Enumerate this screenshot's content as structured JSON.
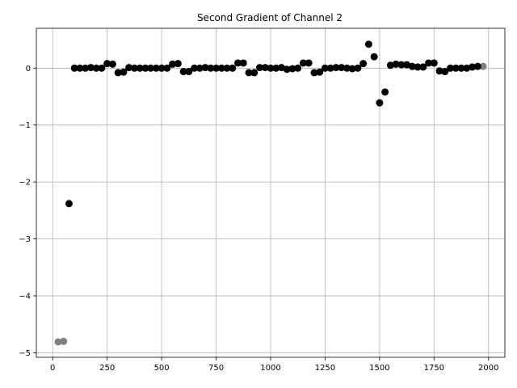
{
  "chart_data": {
    "type": "scatter",
    "title": "Second Gradient of Channel 2",
    "xlabel": "",
    "ylabel": "",
    "xlim": [
      -75,
      2075
    ],
    "ylim": [
      -5.08,
      0.7
    ],
    "grid": true,
    "x_ticks": [
      0,
      250,
      500,
      750,
      1000,
      1250,
      1500,
      1750,
      2000
    ],
    "y_ticks": [
      0,
      -1,
      -2,
      -3,
      -4,
      -5
    ],
    "x_tick_labels": [
      "0",
      "250",
      "500",
      "750",
      "1000",
      "1250",
      "1500",
      "1750",
      "2000"
    ],
    "y_tick_labels": [
      "0",
      "−1",
      "−2",
      "−3",
      "−4",
      "−5"
    ],
    "colors": {
      "primary": "#000000",
      "edge": "#808080",
      "grid": "#b0b0b0"
    },
    "series": [
      {
        "color": "#808080",
        "points": [
          [
            25,
            -4.81
          ],
          [
            50,
            -4.8
          ],
          [
            1975,
            0.03
          ]
        ]
      },
      {
        "color": "#000000",
        "points": [
          [
            75,
            -2.38
          ],
          [
            100,
            0.0
          ],
          [
            125,
            0.0
          ],
          [
            150,
            0.0
          ],
          [
            175,
            0.01
          ],
          [
            200,
            0.0
          ],
          [
            225,
            0.0
          ],
          [
            250,
            0.08
          ],
          [
            275,
            0.07
          ],
          [
            300,
            -0.08
          ],
          [
            325,
            -0.07
          ],
          [
            350,
            0.01
          ],
          [
            375,
            0.0
          ],
          [
            400,
            0.0
          ],
          [
            425,
            0.0
          ],
          [
            450,
            0.0
          ],
          [
            475,
            0.0
          ],
          [
            500,
            0.0
          ],
          [
            525,
            0.0
          ],
          [
            550,
            0.07
          ],
          [
            575,
            0.08
          ],
          [
            600,
            -0.06
          ],
          [
            625,
            -0.06
          ],
          [
            650,
            0.0
          ],
          [
            675,
            0.0
          ],
          [
            700,
            0.01
          ],
          [
            725,
            0.0
          ],
          [
            750,
            0.0
          ],
          [
            775,
            0.0
          ],
          [
            800,
            0.0
          ],
          [
            825,
            0.0
          ],
          [
            850,
            0.09
          ],
          [
            875,
            0.09
          ],
          [
            900,
            -0.08
          ],
          [
            925,
            -0.08
          ],
          [
            950,
            0.01
          ],
          [
            975,
            0.01
          ],
          [
            1000,
            0.0
          ],
          [
            1025,
            0.0
          ],
          [
            1050,
            0.01
          ],
          [
            1075,
            -0.02
          ],
          [
            1100,
            -0.01
          ],
          [
            1125,
            0.0
          ],
          [
            1150,
            0.09
          ],
          [
            1175,
            0.09
          ],
          [
            1200,
            -0.08
          ],
          [
            1225,
            -0.07
          ],
          [
            1250,
            0.0
          ],
          [
            1275,
            0.0
          ],
          [
            1300,
            0.01
          ],
          [
            1325,
            0.01
          ],
          [
            1350,
            0.0
          ],
          [
            1375,
            -0.01
          ],
          [
            1400,
            0.0
          ],
          [
            1425,
            0.08
          ],
          [
            1450,
            0.42
          ],
          [
            1475,
            0.2
          ],
          [
            1500,
            -0.61
          ],
          [
            1525,
            -0.42
          ],
          [
            1550,
            0.05
          ],
          [
            1575,
            0.07
          ],
          [
            1600,
            0.06
          ],
          [
            1625,
            0.06
          ],
          [
            1650,
            0.03
          ],
          [
            1675,
            0.02
          ],
          [
            1700,
            0.02
          ],
          [
            1725,
            0.09
          ],
          [
            1750,
            0.09
          ],
          [
            1775,
            -0.05
          ],
          [
            1800,
            -0.06
          ],
          [
            1825,
            0.0
          ],
          [
            1850,
            0.0
          ],
          [
            1875,
            0.0
          ],
          [
            1900,
            0.0
          ],
          [
            1925,
            0.02
          ],
          [
            1950,
            0.03
          ]
        ]
      }
    ]
  }
}
